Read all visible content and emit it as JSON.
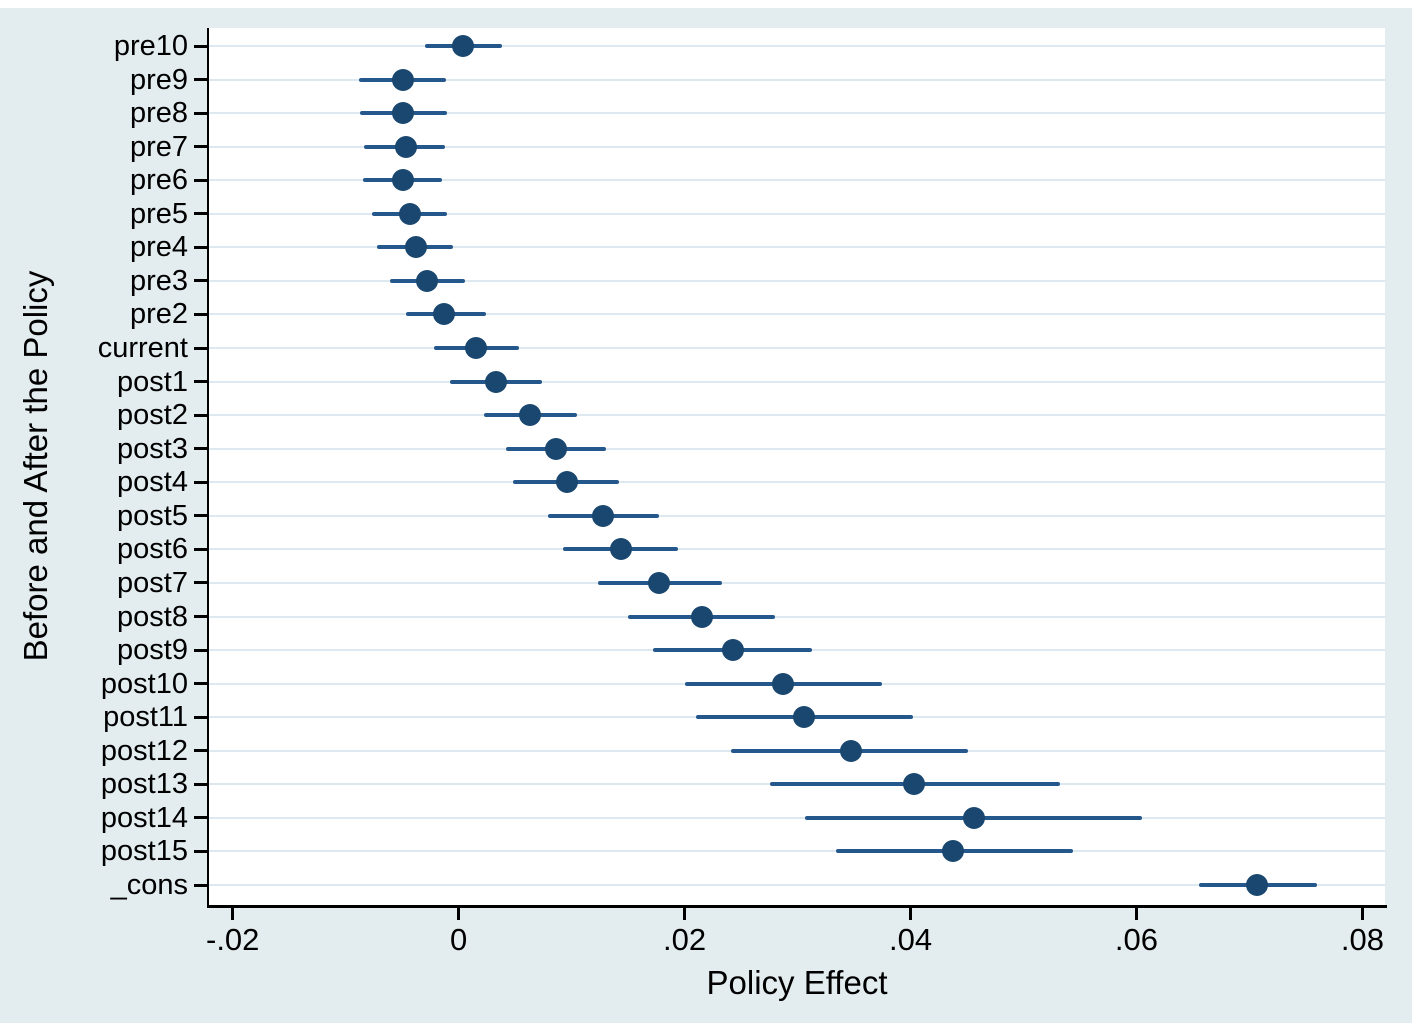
{
  "chart_data": {
    "type": "scatter",
    "subtype": "coefficient-plot-with-horizontal-ci",
    "title": "",
    "xlabel": "Policy Effect",
    "ylabel": "Before and After the Policy",
    "legend": "none",
    "grid": "horizontal-category-gridlines",
    "xlim": [
      -0.0221,
      0.082
    ],
    "x_tick_values": [
      -0.02,
      0,
      0.02,
      0.04,
      0.06,
      0.08
    ],
    "x_tick_labels": [
      "-.02",
      "0",
      ".02",
      ".04",
      ".06",
      ".08"
    ],
    "categories": [
      "pre10",
      "pre9",
      "pre8",
      "pre7",
      "pre6",
      "pre5",
      "pre4",
      "pre3",
      "pre2",
      "current",
      "post1",
      "post2",
      "post3",
      "post4",
      "post5",
      "post6",
      "post7",
      "post8",
      "post9",
      "post10",
      "post11",
      "post12",
      "post13",
      "post14",
      "post15",
      "_cons"
    ],
    "series": [
      {
        "name": "estimate",
        "values": [
          0.0004,
          -0.0049,
          -0.0049,
          -0.0047,
          -0.0049,
          -0.0043,
          -0.0038,
          -0.0028,
          -0.0013,
          0.0015,
          0.0033,
          0.0063,
          0.0086,
          0.0096,
          0.0128,
          0.0144,
          0.0177,
          0.0215,
          0.0243,
          0.0287,
          0.0306,
          0.0347,
          0.0403,
          0.0456,
          0.0438,
          0.0707
        ]
      },
      {
        "name": "ci_low",
        "values": [
          -0.003,
          -0.0088,
          -0.0087,
          -0.0084,
          -0.0085,
          -0.0077,
          -0.0072,
          -0.0061,
          -0.0047,
          -0.0022,
          -0.0008,
          0.0022,
          0.0042,
          0.0048,
          0.0079,
          0.0092,
          0.0123,
          0.015,
          0.0172,
          0.02,
          0.021,
          0.0241,
          0.0276,
          0.0307,
          0.0334,
          0.0655
        ]
      },
      {
        "name": "ci_high",
        "values": [
          0.0038,
          -0.0011,
          -0.001,
          -0.0012,
          -0.0015,
          -0.001,
          -0.0005,
          0.0006,
          0.0024,
          0.0053,
          0.0074,
          0.0105,
          0.013,
          0.0142,
          0.0177,
          0.0194,
          0.0233,
          0.028,
          0.0313,
          0.0375,
          0.0402,
          0.0451,
          0.0532,
          0.0605,
          0.0544,
          0.076
        ]
      }
    ],
    "colors": {
      "marker": "#1a476f",
      "ci_line": "#24578c",
      "plot_bg": "#ffffff",
      "outer_bg": "#e3edf0",
      "gridline": "#dde9f1",
      "axis": "#000000"
    }
  }
}
